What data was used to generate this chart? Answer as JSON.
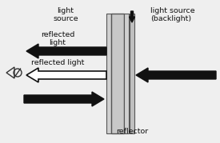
{
  "bg_color": "#efefef",
  "panel_color": "#c0c0c0",
  "panel_outline": "#555555",
  "arrow_black": "#111111",
  "arrow_white_face": "#ffffff",
  "arrow_white_edge": "#111111",
  "eye_color": "#333333",
  "text_color": "#111111",
  "fig_width": 2.75,
  "fig_height": 1.79,
  "dpi": 100,
  "labels": {
    "light_source": "light\nsource",
    "light_source_backlight": "light source\n(backlight)",
    "reflected_light_top": "reflected light",
    "reflected_light_bottom": "reflected\nlight",
    "reflector": "reflector"
  }
}
